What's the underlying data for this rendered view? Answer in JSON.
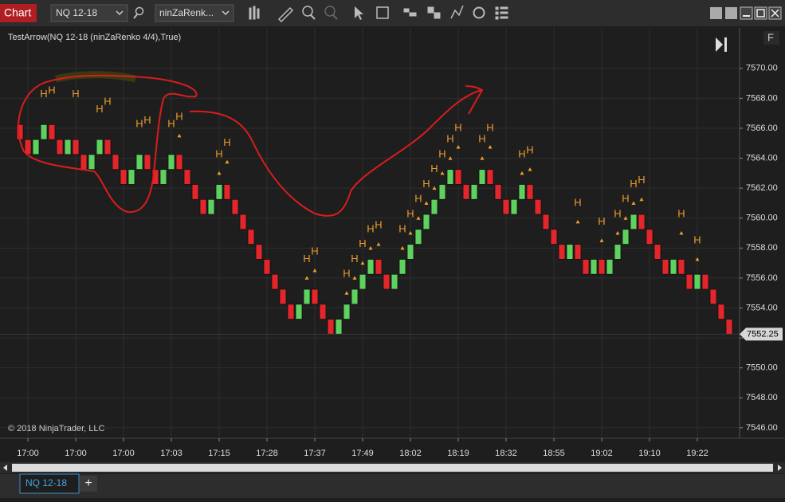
{
  "toolbar": {
    "title": "Chart",
    "instrument": "NQ 12-18",
    "bar_type": "ninZaRenk..."
  },
  "chart_data": {
    "type": "candlestick",
    "title": "TestArrow(NQ 12-18 (ninZaRenko 4/4),True)",
    "corner_button": "F",
    "copyright": "© 2018 NinjaTrader, LLC",
    "categories": [
      null,
      "17:00",
      null,
      null,
      null,
      null,
      null,
      "17:00",
      null,
      null,
      null,
      null,
      null,
      "17:00",
      null,
      null,
      null,
      null,
      null,
      "17:03",
      null,
      null,
      null,
      null,
      null,
      "17:15",
      null,
      null,
      null,
      null,
      null,
      "17:28",
      null,
      null,
      null,
      null,
      null,
      "17:37",
      null,
      null,
      null,
      null,
      null,
      "17:49",
      null,
      null,
      null,
      null,
      null,
      "18:02",
      null,
      null,
      null,
      null,
      null,
      "18:19",
      null,
      null,
      null,
      null,
      null,
      "18:32",
      null,
      null,
      null,
      null,
      null,
      "18:55",
      null,
      null,
      null,
      null,
      null,
      "19:02",
      null,
      null,
      null,
      null,
      null,
      "19:10",
      null,
      null,
      null,
      null,
      null,
      "19:22",
      null,
      null,
      null,
      null
    ],
    "open": [
      7566.25,
      7565.25,
      7564.25,
      7565.25,
      7566.25,
      7565.25,
      7564.25,
      7565.25,
      7564.25,
      7563.25,
      7564.25,
      7565.25,
      7564.25,
      7563.25,
      7562.25,
      7563.25,
      7564.25,
      7563.25,
      7562.25,
      7563.25,
      7564.25,
      7563.25,
      7562.25,
      7561.25,
      7560.25,
      7561.25,
      7562.25,
      7561.25,
      7560.25,
      7559.25,
      7558.25,
      7557.25,
      7556.25,
      7555.25,
      7554.25,
      7553.25,
      7554.25,
      7555.25,
      7554.25,
      7553.25,
      7552.25,
      7553.25,
      7554.25,
      7555.25,
      7556.25,
      7557.25,
      7556.25,
      7555.25,
      7556.25,
      7557.25,
      7558.25,
      7559.25,
      7560.25,
      7561.25,
      7562.25,
      7563.25,
      7562.25,
      7561.25,
      7562.25,
      7563.25,
      7562.25,
      7561.25,
      7560.25,
      7561.25,
      7562.25,
      7561.25,
      7560.25,
      7559.25,
      7558.25,
      7557.25,
      7558.25,
      7557.25,
      7556.25,
      7557.25,
      7556.25,
      7557.25,
      7558.25,
      7559.25,
      7560.25,
      7559.25,
      7558.25,
      7557.25,
      7556.25,
      7557.25,
      7556.25,
      7555.25,
      7556.25,
      7555.25,
      7554.25,
      7553.25
    ],
    "close": [
      7565.25,
      7564.25,
      7565.25,
      7566.25,
      7565.25,
      7564.25,
      7565.25,
      7564.25,
      7563.25,
      7564.25,
      7565.25,
      7564.25,
      7563.25,
      7562.25,
      7563.25,
      7564.25,
      7563.25,
      7562.25,
      7563.25,
      7564.25,
      7563.25,
      7562.25,
      7561.25,
      7560.25,
      7561.25,
      7562.25,
      7561.25,
      7560.25,
      7559.25,
      7558.25,
      7557.25,
      7556.25,
      7555.25,
      7554.25,
      7553.25,
      7554.25,
      7555.25,
      7554.25,
      7553.25,
      7552.25,
      7553.25,
      7554.25,
      7555.25,
      7556.25,
      7557.25,
      7556.25,
      7555.25,
      7556.25,
      7557.25,
      7558.25,
      7559.25,
      7560.25,
      7561.25,
      7562.25,
      7563.25,
      7562.25,
      7561.25,
      7562.25,
      7563.25,
      7562.25,
      7561.25,
      7560.25,
      7561.25,
      7562.25,
      7561.25,
      7560.25,
      7559.25,
      7558.25,
      7557.25,
      7558.25,
      7557.25,
      7556.25,
      7557.25,
      7556.25,
      7557.25,
      7558.25,
      7559.25,
      7560.25,
      7559.25,
      7558.25,
      7557.25,
      7556.25,
      7557.25,
      7556.25,
      7555.25,
      7556.25,
      7555.25,
      7554.25,
      7553.25,
      7552.25
    ],
    "up_color": "#5ed15e",
    "down_color": "#e3262b",
    "h_marks": {
      "text": "H",
      "color": "#ee9d2c",
      "values": [
        null,
        null,
        null,
        7568.25,
        7568.5,
        null,
        null,
        7568.25,
        null,
        null,
        7567.25,
        7567.75,
        null,
        null,
        null,
        7566.25,
        7566.5,
        null,
        null,
        7566.25,
        7566.75,
        null,
        null,
        null,
        null,
        7564.25,
        7565,
        null,
        null,
        null,
        null,
        null,
        null,
        null,
        null,
        null,
        7557.25,
        7557.75,
        null,
        null,
        null,
        7556.25,
        7557.25,
        7558.25,
        7559.25,
        7559.5,
        null,
        null,
        7559.25,
        7560.25,
        7561.25,
        7562.25,
        7563.25,
        7564.25,
        7565.25,
        7566,
        null,
        null,
        7565.25,
        7566,
        null,
        null,
        null,
        7564.25,
        7564.5,
        null,
        null,
        null,
        null,
        null,
        7561,
        null,
        null,
        7559.75,
        null,
        7560.25,
        7561.25,
        7562.25,
        7562.5,
        null,
        null,
        null,
        null,
        7560.25,
        null,
        7558.5,
        null,
        null,
        null,
        null
      ]
    },
    "arrow_marks": {
      "color": "#ee9d2c",
      "values": [
        null,
        null,
        null,
        null,
        null,
        null,
        null,
        null,
        null,
        null,
        null,
        null,
        null,
        null,
        null,
        null,
        null,
        null,
        null,
        null,
        7565.5,
        null,
        null,
        null,
        null,
        7563,
        7563.75,
        null,
        null,
        null,
        null,
        null,
        null,
        null,
        null,
        null,
        7556,
        7556.5,
        null,
        null,
        null,
        7555,
        7556,
        7557,
        7558,
        7558.25,
        null,
        null,
        7558,
        7559,
        7560,
        7561,
        7562,
        7563,
        7564,
        7564.75,
        null,
        null,
        7564,
        7564.75,
        null,
        null,
        null,
        7563,
        7563.25,
        null,
        null,
        null,
        null,
        null,
        7559.75,
        null,
        null,
        7558.5,
        null,
        7559,
        7560,
        7561,
        7561.25,
        null,
        null,
        null,
        null,
        7559,
        null,
        7557.25,
        null,
        null,
        null,
        null
      ]
    },
    "ylim": [
      7545.3,
      7572.65
    ],
    "yticks": [
      {
        "value": 7546,
        "label": "7546.00"
      },
      {
        "value": 7548,
        "label": "7548.00"
      },
      {
        "value": 7550,
        "label": "7550.00"
      },
      {
        "value": 7552,
        "label": "7552.00"
      },
      {
        "value": 7554,
        "label": "7554.00"
      },
      {
        "value": 7556,
        "label": "7556.00"
      },
      {
        "value": 7558,
        "label": "7558.00"
      },
      {
        "value": 7560,
        "label": "7560.00"
      },
      {
        "value": 7562,
        "label": "7562.00"
      },
      {
        "value": 7564,
        "label": "7564.00"
      },
      {
        "value": 7566,
        "label": "7566.00"
      },
      {
        "value": 7568,
        "label": "7568.00"
      },
      {
        "value": 7570,
        "label": "7570.00"
      }
    ],
    "last_price": {
      "value": 7552.25,
      "label": "7552.25"
    },
    "grid": true
  },
  "tabs": {
    "items": [
      "NQ 12-18"
    ],
    "add": "+"
  }
}
